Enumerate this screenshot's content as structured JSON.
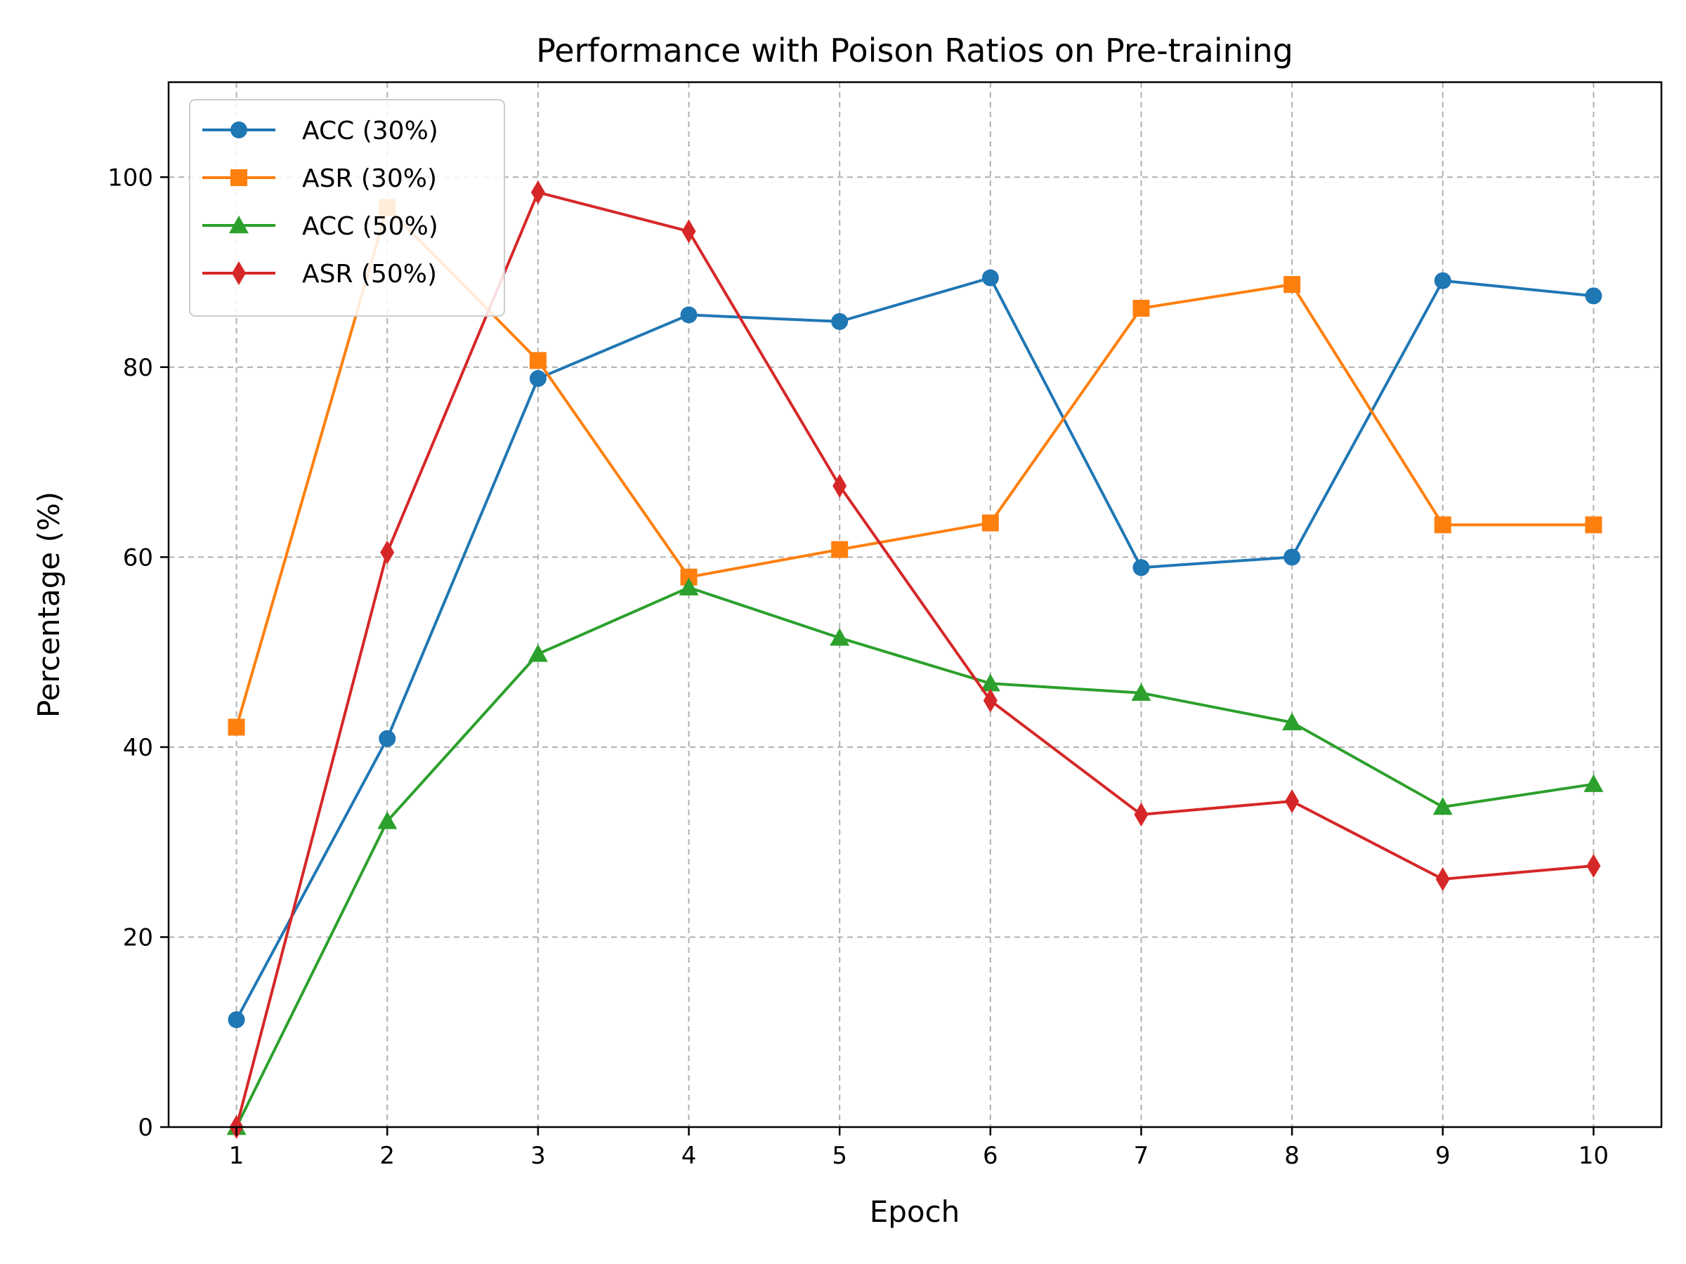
{
  "chart_data": {
    "type": "line",
    "title": "Performance with Poison Ratios on Pre-training",
    "xlabel": "Epoch",
    "ylabel": "Percentage (%)",
    "x": [
      1,
      2,
      3,
      4,
      5,
      6,
      7,
      8,
      9,
      10
    ],
    "xlim": [
      0.55,
      10.45
    ],
    "ylim": [
      0,
      110
    ],
    "xticks": [
      "1",
      "2",
      "3",
      "4",
      "5",
      "6",
      "7",
      "8",
      "9",
      "10"
    ],
    "yticks": [
      "0",
      "20",
      "40",
      "60",
      "80",
      "100"
    ],
    "grid": true,
    "legend_position": "top-left",
    "series": [
      {
        "name": "ACC (30%)",
        "color": "#1f77b4",
        "marker": "circle",
        "values": [
          11.3,
          40.9,
          78.8,
          85.5,
          84.8,
          89.4,
          58.9,
          60.0,
          89.1,
          87.5
        ]
      },
      {
        "name": "ASR (30%)",
        "color": "#ff7f0e",
        "marker": "square",
        "values": [
          42.1,
          96.8,
          80.7,
          57.9,
          60.8,
          63.6,
          86.2,
          88.7,
          63.4,
          63.4
        ]
      },
      {
        "name": "ACC (50%)",
        "color": "#2ca02c",
        "marker": "triangle",
        "values": [
          0.0,
          32.2,
          49.8,
          56.8,
          51.5,
          46.7,
          45.7,
          42.6,
          33.7,
          36.1
        ]
      },
      {
        "name": "ASR (50%)",
        "color": "#d62728",
        "marker": "diamond",
        "values": [
          0.0,
          60.5,
          98.4,
          94.3,
          67.5,
          44.9,
          32.9,
          34.3,
          26.1,
          27.5
        ]
      }
    ]
  }
}
